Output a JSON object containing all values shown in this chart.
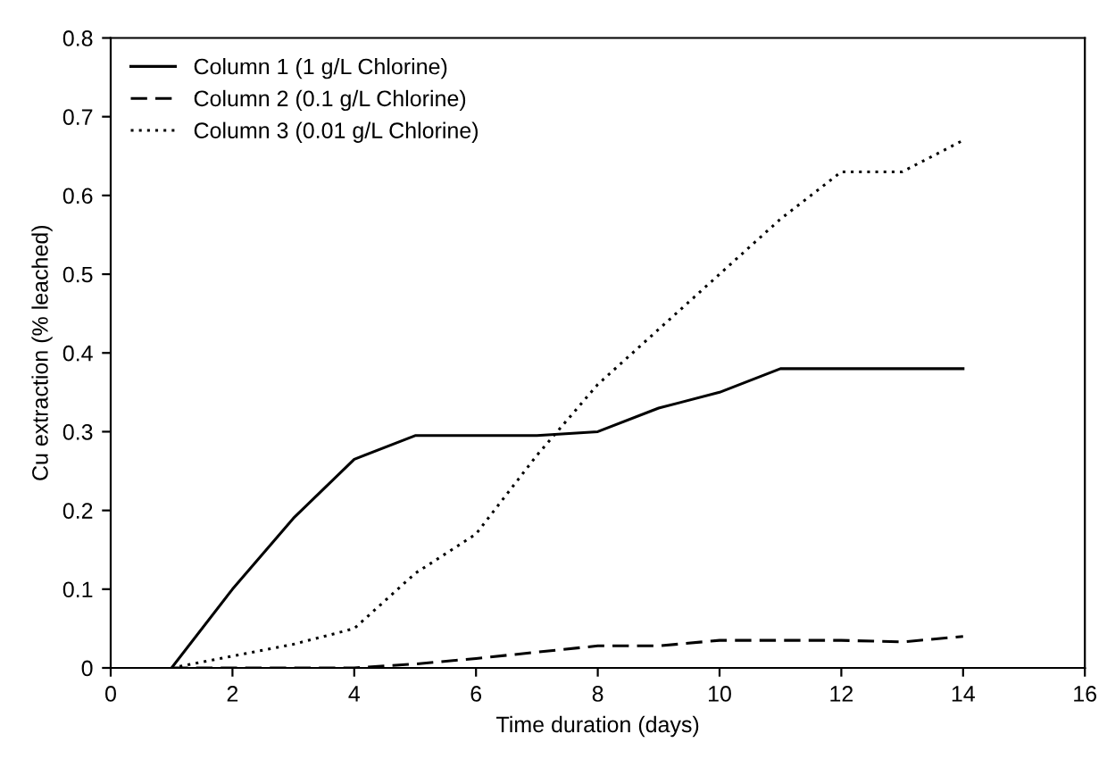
{
  "chart_data": {
    "type": "line",
    "xlabel": "Time duration (days)",
    "ylabel": "Cu extraction (% leached)",
    "xlim": [
      0,
      16
    ],
    "xticks": [
      0,
      2,
      4,
      6,
      8,
      10,
      12,
      14,
      16
    ],
    "ylim": [
      0,
      0.8
    ],
    "yticks": [
      0,
      0.1,
      0.2,
      0.3,
      0.4,
      0.5,
      0.6,
      0.7,
      0.8
    ],
    "grid": false,
    "legend": "top left",
    "marker": "none",
    "series": [
      {
        "name": "Column 1 (1 g/L Chlorine)",
        "color": "#000000",
        "line_style": "solid",
        "x": [
          1,
          2,
          3,
          4,
          5,
          6,
          7,
          8,
          9,
          10,
          11,
          12,
          13,
          14
        ],
        "values": [
          0,
          0.1,
          0.19,
          0.265,
          0.295,
          0.295,
          0.295,
          0.3,
          0.33,
          0.35,
          0.38,
          0.38,
          0.38,
          0.38
        ]
      },
      {
        "name": "Column 2 (0.1 g/L Chlorine)",
        "color": "#000000",
        "line_style": "dashed",
        "x": [
          1,
          4,
          5,
          6,
          7,
          8,
          9,
          10,
          11,
          12,
          13,
          14
        ],
        "values": [
          0,
          0,
          0.005,
          0.012,
          0.02,
          0.028,
          0.028,
          0.035,
          0.035,
          0.035,
          0.033,
          0.04
        ]
      },
      {
        "name": "Column 3 (0.01 g/L Chlorine)",
        "color": "#000000",
        "line_style": "dotted",
        "x": [
          1,
          2,
          3,
          4,
          5,
          6,
          7,
          8,
          9,
          10,
          11,
          12,
          13,
          14
        ],
        "values": [
          0,
          0.015,
          0.03,
          0.05,
          0.12,
          0.17,
          0.27,
          0.36,
          0.43,
          0.5,
          0.57,
          0.63,
          0.63,
          0.67
        ]
      }
    ]
  }
}
